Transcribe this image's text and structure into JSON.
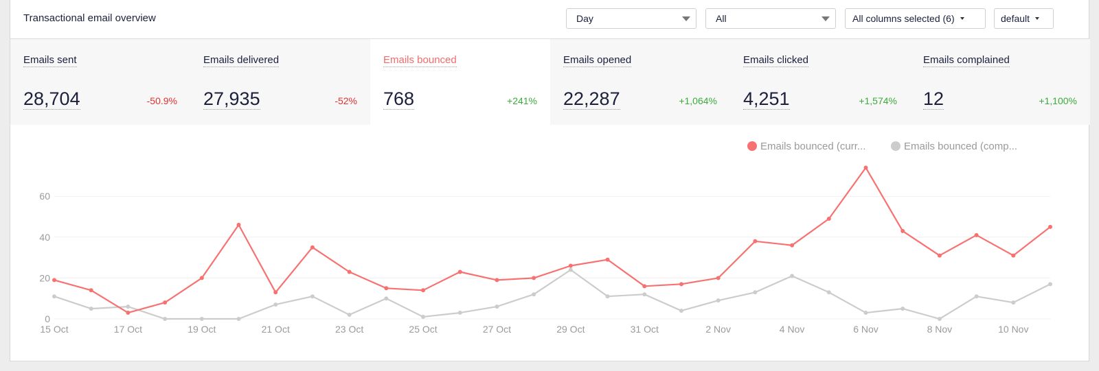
{
  "header": {
    "title": "Transactional email overview",
    "period_select": "Day",
    "filter_select": "All",
    "columns_select": "All columns selected (6)",
    "view_select": "default"
  },
  "metrics": [
    {
      "label": "Emails sent",
      "value": "28,704",
      "change": "-50.9%",
      "trend": "negative"
    },
    {
      "label": "Emails delivered",
      "value": "27,935",
      "change": "-52%",
      "trend": "negative"
    },
    {
      "label": "Emails bounced",
      "value": "768",
      "change": "+241%",
      "trend": "positive",
      "active": true
    },
    {
      "label": "Emails opened",
      "value": "22,287",
      "change": "+1,064%",
      "trend": "positive"
    },
    {
      "label": "Emails clicked",
      "value": "4,251",
      "change": "+1,574%",
      "trend": "positive"
    },
    {
      "label": "Emails complained",
      "value": "12",
      "change": "+1,100%",
      "trend": "positive"
    }
  ],
  "colors": {
    "current": "#f87171",
    "comparison": "#cccccc",
    "grid": "#efefef",
    "axis_text": "#9a9a9a"
  },
  "chart_data": {
    "type": "line",
    "x": [
      "15 Oct",
      "16 Oct",
      "17 Oct",
      "18 Oct",
      "19 Oct",
      "20 Oct",
      "21 Oct",
      "22 Oct",
      "23 Oct",
      "24 Oct",
      "25 Oct",
      "26 Oct",
      "27 Oct",
      "28 Oct",
      "29 Oct",
      "30 Oct",
      "31 Oct",
      "1 Nov",
      "2 Nov",
      "3 Nov",
      "4 Nov",
      "5 Nov",
      "6 Nov",
      "7 Nov",
      "8 Nov",
      "9 Nov",
      "10 Nov",
      "11 Nov"
    ],
    "xtick_labels": [
      "15 Oct",
      "17 Oct",
      "19 Oct",
      "21 Oct",
      "23 Oct",
      "25 Oct",
      "27 Oct",
      "29 Oct",
      "31 Oct",
      "2 Nov",
      "4 Nov",
      "6 Nov",
      "8 Nov",
      "10 Nov"
    ],
    "yticks": [
      0,
      20,
      40,
      60
    ],
    "ylim": [
      0,
      80
    ],
    "grid": true,
    "legend_position": "top-right",
    "series": [
      {
        "name": "Emails bounced (curr...",
        "color": "#f87171",
        "values": [
          19,
          14,
          3,
          8,
          20,
          46,
          13,
          35,
          23,
          15,
          14,
          23,
          19,
          20,
          26,
          29,
          16,
          17,
          20,
          38,
          36,
          49,
          74,
          43,
          31,
          41,
          31,
          45
        ]
      },
      {
        "name": "Emails bounced (comp...",
        "color": "#cccccc",
        "values": [
          11,
          5,
          6,
          0,
          0,
          0,
          7,
          11,
          2,
          10,
          1,
          3,
          6,
          12,
          24,
          11,
          12,
          4,
          9,
          13,
          21,
          13,
          3,
          5,
          0,
          11,
          8,
          17
        ]
      }
    ]
  }
}
